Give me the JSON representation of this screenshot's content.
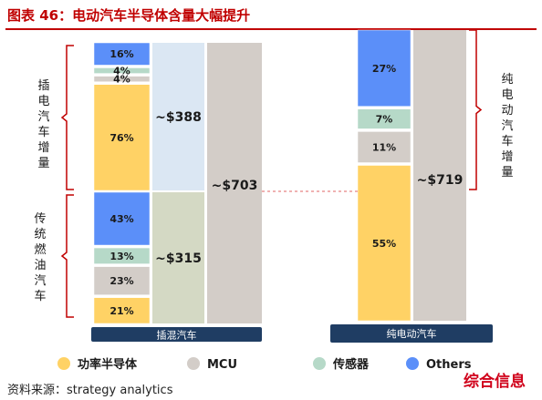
{
  "figure_title": "图表 46：电动汽车半导体含量大幅提升",
  "source": "资料来源：strategy analytics",
  "watermark": "综合信息",
  "colors": {
    "title": "#c00000",
    "title_rule": "#c00000",
    "accent_bracket": "#c00000",
    "dashed_line": "#e06666",
    "power_semiconductor": "#ffd265",
    "mcu": "#d3cdc8",
    "sensor": "#b6d9c8",
    "others": "#5b8ff9",
    "mild_light_blue": "#dbe7f3",
    "mild_sage": "#d4d9c4",
    "base_bar": "#d3cdc8",
    "label_box": "#1f3d63",
    "watermark": "#d0021b"
  },
  "chart_data": {
    "type": "bar",
    "stacked": true,
    "vehicles": [
      {
        "name": "插混汽车",
        "stack_groups": [
          {
            "name": "插电汽车增量",
            "segments": [
              {
                "category": "功率半导体",
                "value": 76,
                "label": "76%"
              },
              {
                "category": "MCU",
                "value": 4,
                "label": "4%"
              },
              {
                "category": "传感器",
                "value": 4,
                "label": "4%"
              },
              {
                "category": "Others",
                "value": 16,
                "label": "16%"
              }
            ],
            "amount": 388,
            "amount_label": "~$388"
          },
          {
            "name": "传统燃油汽车",
            "segments": [
              {
                "category": "功率半导体",
                "value": 21,
                "label": "21%"
              },
              {
                "category": "MCU",
                "value": 23,
                "label": "23%"
              },
              {
                "category": "传感器",
                "value": 13,
                "label": "13%"
              },
              {
                "category": "Others",
                "value": 43,
                "label": "43%"
              }
            ],
            "amount": 315,
            "amount_label": "~$315"
          }
        ],
        "total": 703,
        "total_label": "~$703"
      },
      {
        "name": "纯电动汽车",
        "stack_groups": [
          {
            "name": "纯电动汽车增量",
            "segments": [
              {
                "category": "功率半导体",
                "value": 55,
                "label": "55%"
              },
              {
                "category": "MCU",
                "value": 11,
                "label": "11%"
              },
              {
                "category": "传感器",
                "value": 7,
                "label": "7%"
              },
              {
                "category": "Others",
                "value": 27,
                "label": "27%"
              }
            ]
          }
        ],
        "total": 719,
        "total_label": "~$719"
      }
    ],
    "legend": {
      "placement": "bottom",
      "entries": [
        "功率半导体",
        "MCU",
        "传感器",
        "Others"
      ]
    },
    "side_labels": {
      "left_top": "插电汽车增量",
      "left_bottom": "传统燃油汽车",
      "right": "纯电动汽车增量"
    }
  }
}
